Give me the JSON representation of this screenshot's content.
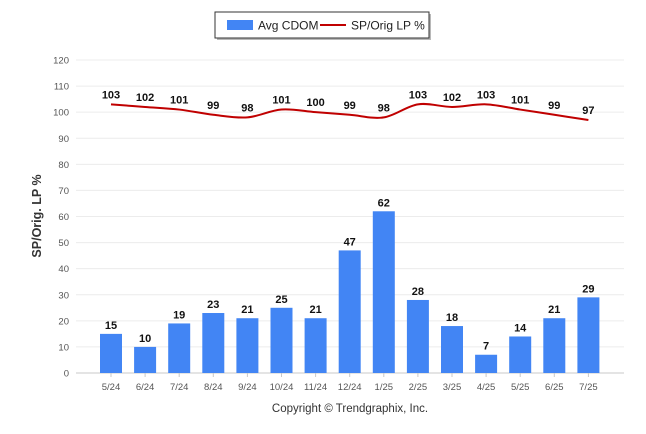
{
  "chart_data": {
    "type": "bar",
    "categories": [
      "5/24",
      "6/24",
      "7/24",
      "8/24",
      "9/24",
      "10/24",
      "11/24",
      "12/24",
      "1/25",
      "2/25",
      "3/25",
      "4/25",
      "5/25",
      "6/25",
      "7/25"
    ],
    "series": [
      {
        "name": "Avg CDOM",
        "type": "bar",
        "color": "#4285f4",
        "values": [
          15,
          10,
          19,
          23,
          21,
          25,
          21,
          47,
          62,
          28,
          18,
          7,
          14,
          21,
          29
        ]
      },
      {
        "name": "SP/Orig LP %",
        "type": "line",
        "color": "#c00000",
        "values": [
          103,
          102,
          101,
          99,
          98,
          101,
          100,
          99,
          98,
          103,
          102,
          103,
          101,
          99,
          97
        ]
      }
    ],
    "ylabel": "SP/Orig. LP %",
    "xlabel": "",
    "ylim": [
      0,
      120
    ],
    "yticks": [
      "0",
      "10",
      "20",
      "30",
      "40",
      "50",
      "60",
      "70",
      "80",
      "90",
      "100",
      "110",
      "120"
    ],
    "grid": true,
    "legend": "top-center",
    "credit": "Copyright © Trendgraphix, Inc."
  }
}
